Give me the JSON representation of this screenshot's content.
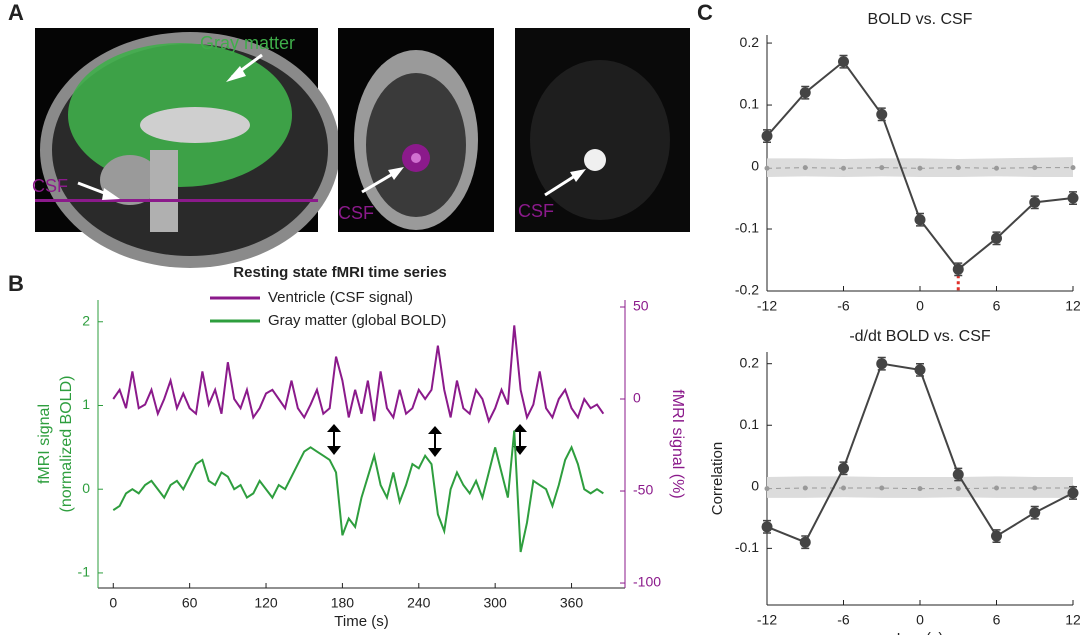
{
  "panel_labels": [
    "A",
    "B",
    "C"
  ],
  "image_labels": [
    "Gray matter",
    "CSF",
    "CSF",
    "CSF"
  ],
  "chart_data": [
    {
      "type": "line",
      "title": "Resting state fMRI time series",
      "xlabel": "Time (s)",
      "ylabel": [
        "fMRI signal",
        "(normalized BOLD)"
      ],
      "y2label": "fMRI signal (%)",
      "legend": "upper center",
      "xlim": [
        -12,
        402
      ],
      "xticks": [
        0,
        60,
        120,
        180,
        240,
        300,
        360
      ],
      "ylim": [
        -1.18,
        2.26
      ],
      "yticks": [
        -1,
        0,
        1,
        2
      ],
      "y2lim": [
        -102.7,
        53.8
      ],
      "y2ticks": [
        -100,
        -50,
        0,
        50
      ],
      "x": [
        0,
        5,
        10,
        15,
        20,
        25,
        30,
        35,
        40,
        45,
        50,
        55,
        60,
        65,
        70,
        75,
        80,
        85,
        90,
        95,
        100,
        105,
        110,
        115,
        120,
        125,
        130,
        135,
        140,
        145,
        150,
        155,
        160,
        165,
        170,
        175,
        180,
        185,
        190,
        195,
        200,
        205,
        210,
        215,
        220,
        225,
        230,
        235,
        240,
        245,
        250,
        255,
        260,
        265,
        270,
        275,
        280,
        285,
        290,
        295,
        300,
        305,
        310,
        315,
        320,
        325,
        330,
        335,
        340,
        345,
        350,
        355,
        360,
        365,
        370,
        375,
        380,
        385
      ],
      "series": [
        {
          "name": "Ventricle (CSF signal)",
          "color": "#8b1a8b",
          "axis": "y2",
          "values": [
            0,
            5,
            -5,
            15,
            -5,
            -3,
            5,
            -8,
            0,
            10,
            -5,
            3,
            -5,
            -8,
            15,
            -3,
            5,
            -8,
            20,
            0,
            -5,
            5,
            -10,
            -5,
            3,
            5,
            0,
            -5,
            10,
            -5,
            -10,
            -3,
            5,
            -8,
            -5,
            23,
            10,
            -10,
            5,
            -8,
            10,
            -12,
            15,
            -5,
            -10,
            5,
            -8,
            -5,
            5,
            0,
            5,
            29,
            5,
            -10,
            10,
            -5,
            -8,
            5,
            0,
            -12,
            -5,
            5,
            -3,
            40,
            5,
            -10,
            -3,
            15,
            -5,
            -10,
            0,
            5,
            -5,
            -10,
            0,
            -5,
            -3,
            -8
          ]
        },
        {
          "name": "Gray matter (global BOLD)",
          "color": "#2e9e3e",
          "axis": "y",
          "values": [
            -0.25,
            -0.2,
            -0.05,
            0.0,
            -0.05,
            0.05,
            0.1,
            0.0,
            -0.1,
            0.05,
            0.1,
            0.0,
            0.15,
            0.3,
            0.35,
            0.1,
            0.05,
            0.2,
            0.15,
            0.0,
            0.05,
            -0.1,
            -0.05,
            0.1,
            0.0,
            -0.1,
            0.05,
            0.0,
            0.15,
            0.3,
            0.45,
            0.5,
            0.45,
            0.4,
            0.35,
            0.2,
            -0.55,
            -0.35,
            -0.45,
            -0.1,
            0.15,
            0.4,
            0.05,
            -0.1,
            0.2,
            -0.15,
            0.05,
            0.3,
            0.25,
            0.4,
            0.3,
            -0.3,
            -0.5,
            0.0,
            0.2,
            0.05,
            -0.05,
            0.1,
            -0.1,
            0.2,
            0.5,
            0.2,
            -0.1,
            0.7,
            -0.75,
            -0.4,
            0.1,
            0.05,
            0.0,
            -0.2,
            0.05,
            0.35,
            0.5,
            0.3,
            0.0,
            -0.05,
            0.0,
            -0.05
          ]
        }
      ]
    },
    {
      "type": "errorbar",
      "title": "BOLD vs. CSF",
      "color": "#444444",
      "xlim": [
        -12,
        12
      ],
      "xticks": [
        -12,
        -6,
        0,
        6,
        12
      ],
      "ylim": [
        -0.2,
        0.213
      ],
      "yticks": [
        -0.2,
        -0.1,
        0,
        0.1,
        0.2
      ],
      "x": [
        -12,
        -9,
        -6,
        -3,
        0,
        3,
        6,
        9,
        12
      ],
      "values": [
        0.05,
        0.12,
        0.17,
        0.085,
        -0.085,
        -0.165,
        -0.115,
        -0.057,
        -0.05
      ],
      "errors": [
        0.01,
        0.01,
        0.01,
        0.01,
        0.01,
        0.01,
        0.01,
        0.01,
        0.01
      ],
      "null_values": [
        -0.002,
        -0.001,
        -0.002,
        -0.001,
        -0.002,
        -0.001,
        -0.002,
        -0.001,
        -0.001
      ],
      "null_lower": [
        -0.016,
        -0.015,
        -0.016,
        -0.015,
        -0.016,
        -0.016,
        -0.015,
        -0.016,
        -0.016
      ],
      "null_upper": [
        0.014,
        0.014,
        0.013,
        0.014,
        0.014,
        0.013,
        0.014,
        0.015,
        0.016
      ],
      "marker_x": 3,
      "marker_color": "#e0302a"
    },
    {
      "type": "errorbar",
      "title": "-d/dt BOLD vs. CSF",
      "xlabel": "Lag (s)",
      "ylabel": "Correlation",
      "color": "#444444",
      "xlim": [
        -12,
        12
      ],
      "xticks": [
        -12,
        -6,
        0,
        6,
        12
      ],
      "ylim": [
        -0.192,
        0.219
      ],
      "yticks": [
        -0.1,
        0,
        0.1,
        0.2
      ],
      "x": [
        -12,
        -9,
        -6,
        -3,
        0,
        3,
        6,
        9,
        12
      ],
      "values": [
        -0.065,
        -0.09,
        0.03,
        0.2,
        0.19,
        0.02,
        -0.08,
        -0.042,
        -0.01
      ],
      "errors": [
        0.01,
        0.01,
        0.01,
        0.01,
        0.01,
        0.01,
        0.01,
        0.01,
        0.01
      ],
      "null_values": [
        -0.003,
        -0.002,
        -0.002,
        -0.002,
        -0.003,
        -0.003,
        -0.002,
        -0.002,
        -0.002
      ],
      "null_lower": [
        -0.018,
        -0.018,
        -0.017,
        -0.018,
        -0.018,
        -0.017,
        -0.018,
        -0.018,
        -0.018
      ],
      "null_upper": [
        0.016,
        0.017,
        0.017,
        0.016,
        0.016,
        0.016,
        0.017,
        0.016,
        0.016
      ]
    }
  ]
}
